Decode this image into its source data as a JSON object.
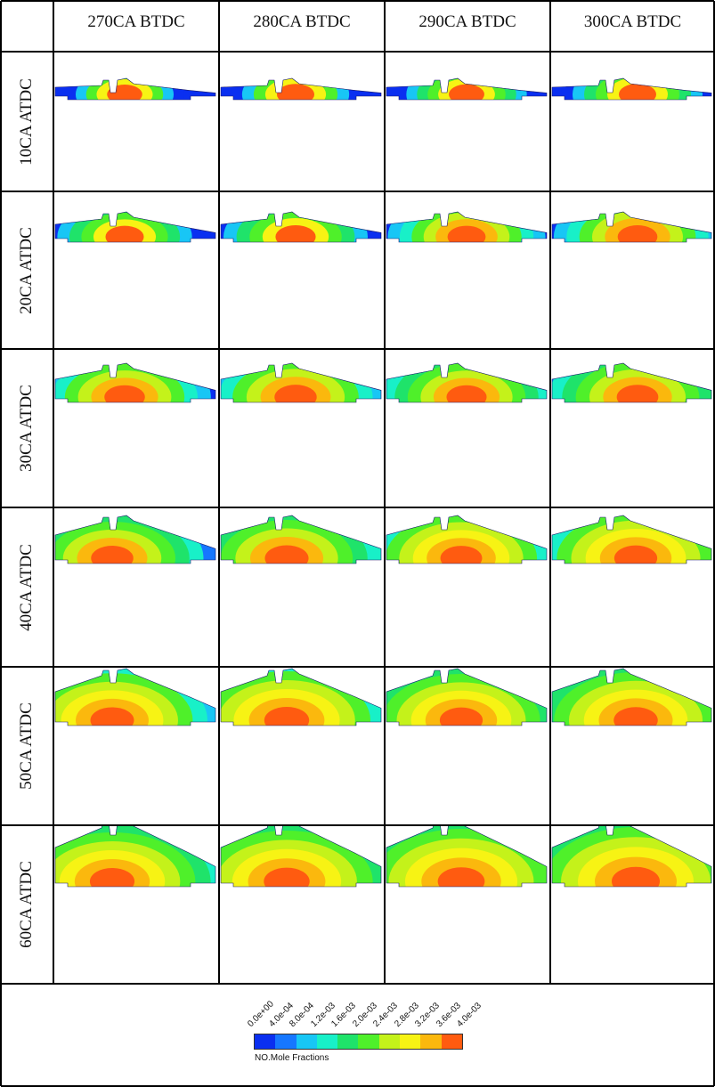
{
  "columns": [
    "270CA BTDC",
    "280CA BTDC",
    "290CA BTDC",
    "300CA BTDC"
  ],
  "rows": [
    "10CA ATDC",
    "20CA ATDC",
    "30CA ATDC",
    "40CA ATDC",
    "50CA ATDC",
    "60CA ATDC"
  ],
  "legend": {
    "label": "NO.Mole Fractions",
    "ticks": [
      "0.0e+00",
      "4.0e-04",
      "8.0e-04",
      "1.2e-03",
      "1.6e-03",
      "2.0e-03",
      "2.4e-03",
      "2.8e-03",
      "3.2e-03",
      "3.6e-03",
      "4.0e-03"
    ],
    "colors": [
      "#0a2ff0",
      "#1677ff",
      "#18c6f5",
      "#18f0c8",
      "#1fe36a",
      "#4ff02a",
      "#c4f21a",
      "#f7f314",
      "#fbb80d",
      "#ff5b10"
    ]
  },
  "colors": {
    "grid": "#000000",
    "background_blue": "#0a2ff0",
    "hot_red": "#ff2200"
  }
}
